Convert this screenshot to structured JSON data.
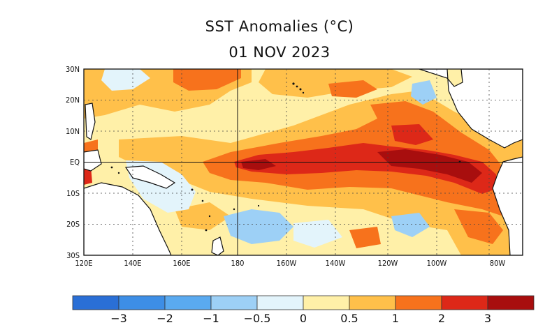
{
  "header": {
    "title": "SST Anomalies (°C)",
    "date": "01 NOV 2023"
  },
  "map": {
    "lat_labels": [
      "30N",
      "20N",
      "10N",
      "EQ",
      "10S",
      "20S",
      "30S"
    ],
    "lon_labels": [
      "120E",
      "140E",
      "160E",
      "180",
      "160W",
      "140W",
      "120W",
      "100W",
      "80W"
    ],
    "grid": true
  },
  "colorbar": {
    "labels": [
      "−3",
      "−2",
      "−1",
      "−0.5",
      "0",
      "0.5",
      "1",
      "2",
      "3"
    ],
    "colors": [
      "#2a6fd6",
      "#3d8ee6",
      "#5aaaf0",
      "#9dd0f6",
      "#e3f4fb",
      "#fff0a8",
      "#ffc04a",
      "#f7721c",
      "#dd2818",
      "#a80e0e"
    ]
  }
}
